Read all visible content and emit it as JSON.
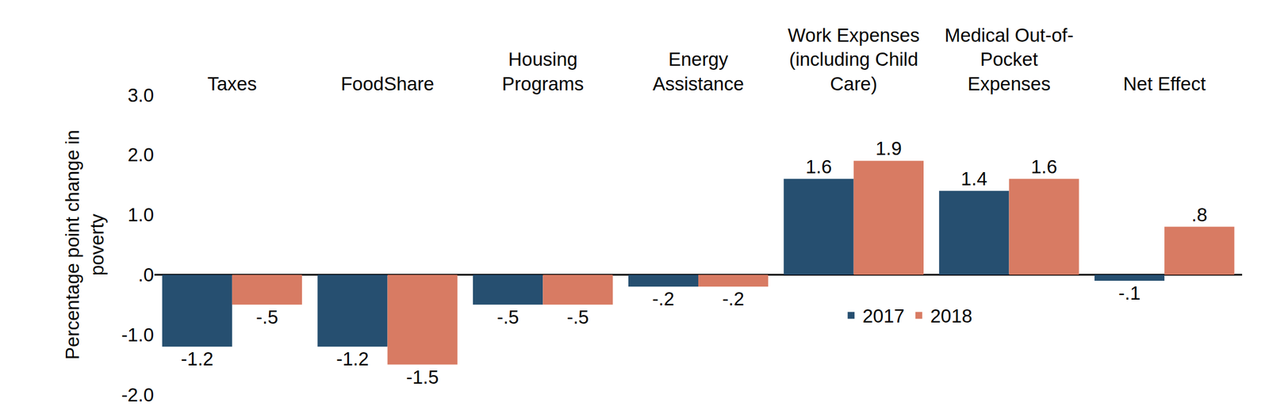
{
  "chart_data": {
    "type": "bar",
    "y_label": "Percentage point change in\npoverty",
    "categories": [
      "Taxes",
      "FoodShare",
      "Housing\nPrograms",
      "Energy\nAssistance",
      "Work Expenses\n(including Child\nCare)",
      "Medical Out-of-\nPocket\nExpenses",
      "Net Effect"
    ],
    "series": [
      {
        "name": "2017",
        "color": "#264f70",
        "values": [
          -1.2,
          -1.2,
          -0.5,
          -0.2,
          1.6,
          1.4,
          -0.1
        ],
        "value_labels": [
          "-1.2",
          "-1.2",
          "-.5",
          "-.2",
          "1.6",
          "1.4",
          "-.1"
        ]
      },
      {
        "name": "2018",
        "color": "#d87b63",
        "values": [
          -0.5,
          -1.5,
          -0.5,
          -0.2,
          1.9,
          1.6,
          0.8
        ],
        "value_labels": [
          "-.5",
          "-1.5",
          "-.5",
          "-.2",
          "1.9",
          "1.6",
          ".8"
        ]
      }
    ],
    "ylim": [
      -2,
      3
    ],
    "yticks": [
      {
        "value": -2,
        "label": "-2.0"
      },
      {
        "value": -1,
        "label": "-1.0"
      },
      {
        "value": 0,
        "label": ".0"
      },
      {
        "value": 1,
        "label": "1.0"
      },
      {
        "value": 2,
        "label": "2.0"
      },
      {
        "value": 3,
        "label": "3.0"
      }
    ],
    "grid": false,
    "data_labels": true,
    "legend": "bottom"
  }
}
